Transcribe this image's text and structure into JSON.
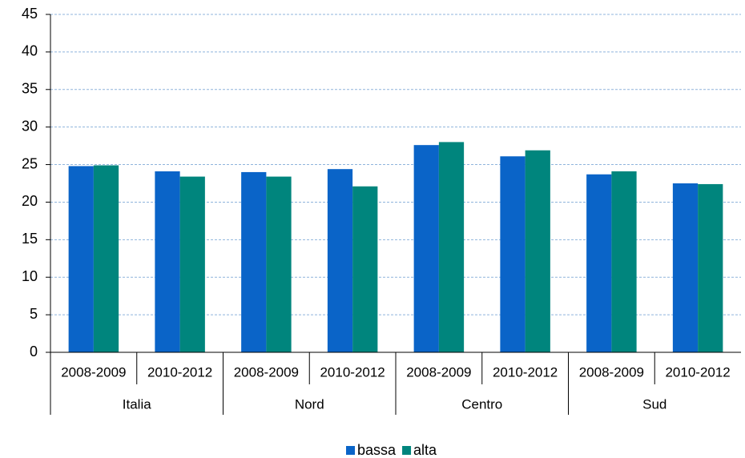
{
  "chart_data": {
    "type": "bar",
    "categories": [
      "2008-2009",
      "2010-2012",
      "2008-2009",
      "2010-2012",
      "2008-2009",
      "2010-2012",
      "2008-2009",
      "2010-2012"
    ],
    "groups": [
      "Italia",
      "Nord",
      "Centro",
      "Sud"
    ],
    "series": [
      {
        "name": "bassa",
        "color": "#0a64c8",
        "values": [
          24.8,
          24.1,
          24.0,
          24.4,
          27.6,
          26.1,
          23.7,
          22.5
        ]
      },
      {
        "name": "alta",
        "color": "#00857d",
        "values": [
          24.9,
          23.4,
          23.4,
          22.1,
          28.0,
          26.9,
          24.1,
          22.4
        ]
      }
    ],
    "ylim": [
      0,
      45
    ],
    "yticks": [
      0,
      5,
      10,
      15,
      20,
      25,
      30,
      35,
      40,
      45
    ],
    "grid": true,
    "legend": "bottom"
  }
}
